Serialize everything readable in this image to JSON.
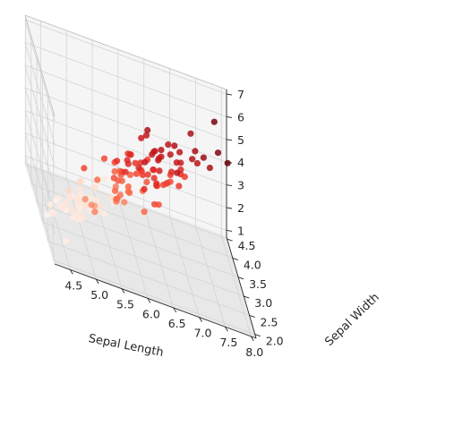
{
  "chart_data": {
    "type": "scatter",
    "projection": "3d",
    "title": "",
    "xlabel": "Sepal Length",
    "ylabel": "Sepal Width",
    "zlabel": "",
    "xlim": [
      4.2,
      8.1
    ],
    "ylim": [
      1.9,
      4.55
    ],
    "zlim": [
      0.7,
      7.2
    ],
    "xticks": [
      "4.5",
      "5.0",
      "5.5",
      "6.0",
      "6.5",
      "7.0",
      "7.5",
      "8.0"
    ],
    "yticks": [
      "2.0",
      "2.5",
      "3.0",
      "3.5",
      "4.0",
      "4.5"
    ],
    "zticks": [
      "1",
      "2",
      "3",
      "4",
      "5",
      "6",
      "7"
    ],
    "grid": true,
    "pane_color": "#f2f2f2",
    "colormap": "Reds",
    "color_by": "z",
    "points": [
      [
        4.3,
        3.0,
        1.1
      ],
      [
        4.4,
        2.9,
        1.4
      ],
      [
        4.4,
        3.0,
        1.3
      ],
      [
        4.4,
        3.2,
        1.3
      ],
      [
        4.5,
        2.3,
        1.3
      ],
      [
        4.6,
        3.1,
        1.5
      ],
      [
        4.6,
        3.4,
        1.4
      ],
      [
        4.6,
        3.6,
        1.0
      ],
      [
        4.6,
        3.2,
        1.4
      ],
      [
        4.7,
        3.2,
        1.3
      ],
      [
        4.7,
        3.2,
        1.6
      ],
      [
        4.8,
        3.4,
        1.6
      ],
      [
        4.8,
        3.0,
        1.4
      ],
      [
        4.8,
        3.4,
        1.9
      ],
      [
        4.8,
        3.1,
        1.6
      ],
      [
        4.8,
        3.0,
        1.4
      ],
      [
        4.9,
        3.0,
        1.4
      ],
      [
        4.9,
        3.1,
        1.5
      ],
      [
        4.9,
        3.6,
        1.4
      ],
      [
        4.9,
        2.4,
        3.3
      ],
      [
        4.9,
        2.5,
        4.5
      ],
      [
        5.0,
        3.6,
        1.4
      ],
      [
        5.0,
        3.4,
        1.5
      ],
      [
        5.0,
        3.0,
        1.6
      ],
      [
        5.0,
        3.4,
        1.6
      ],
      [
        5.0,
        3.2,
        1.2
      ],
      [
        5.0,
        3.5,
        1.3
      ],
      [
        5.0,
        3.5,
        1.6
      ],
      [
        5.0,
        3.3,
        1.4
      ],
      [
        5.0,
        2.0,
        3.5
      ],
      [
        5.0,
        2.3,
        3.3
      ],
      [
        5.1,
        3.5,
        1.4
      ],
      [
        5.1,
        3.7,
        1.5
      ],
      [
        5.1,
        3.3,
        1.7
      ],
      [
        5.1,
        3.4,
        1.5
      ],
      [
        5.1,
        3.8,
        1.9
      ],
      [
        5.1,
        3.8,
        1.6
      ],
      [
        5.1,
        2.5,
        3.0
      ],
      [
        5.2,
        3.5,
        1.5
      ],
      [
        5.2,
        3.4,
        1.4
      ],
      [
        5.2,
        4.1,
        1.5
      ],
      [
        5.2,
        2.7,
        3.9
      ],
      [
        5.3,
        3.7,
        1.5
      ],
      [
        5.4,
        3.9,
        1.7
      ],
      [
        5.4,
        3.7,
        1.5
      ],
      [
        5.4,
        3.4,
        1.7
      ],
      [
        5.4,
        3.4,
        1.5
      ],
      [
        5.4,
        3.0,
        4.5
      ],
      [
        5.5,
        4.2,
        1.4
      ],
      [
        5.5,
        3.5,
        1.3
      ],
      [
        5.5,
        2.3,
        4.0
      ],
      [
        5.5,
        2.4,
        3.8
      ],
      [
        5.5,
        2.4,
        3.7
      ],
      [
        5.5,
        2.5,
        4.0
      ],
      [
        5.5,
        2.6,
        4.4
      ],
      [
        5.6,
        2.9,
        3.6
      ],
      [
        5.6,
        3.0,
        4.5
      ],
      [
        5.6,
        2.5,
        3.9
      ],
      [
        5.6,
        3.0,
        4.1
      ],
      [
        5.6,
        2.7,
        4.2
      ],
      [
        5.6,
        2.8,
        4.9
      ],
      [
        5.7,
        4.4,
        1.5
      ],
      [
        5.7,
        3.8,
        1.7
      ],
      [
        5.7,
        2.8,
        4.5
      ],
      [
        5.7,
        2.6,
        3.5
      ],
      [
        5.7,
        3.0,
        4.2
      ],
      [
        5.7,
        2.9,
        4.2
      ],
      [
        5.7,
        2.8,
        4.1
      ],
      [
        5.7,
        2.5,
        5.0
      ],
      [
        5.8,
        4.0,
        1.2
      ],
      [
        5.8,
        2.7,
        4.1
      ],
      [
        5.8,
        2.7,
        3.9
      ],
      [
        5.8,
        2.6,
        4.0
      ],
      [
        5.8,
        2.7,
        5.1
      ],
      [
        5.8,
        2.8,
        5.1
      ],
      [
        5.9,
        3.0,
        4.2
      ],
      [
        5.9,
        3.2,
        4.8
      ],
      [
        5.9,
        3.0,
        5.1
      ],
      [
        6.0,
        2.2,
        4.0
      ],
      [
        6.0,
        2.9,
        4.5
      ],
      [
        6.0,
        2.7,
        5.1
      ],
      [
        6.0,
        3.4,
        4.5
      ],
      [
        6.0,
        2.2,
        5.0
      ],
      [
        6.0,
        3.0,
        4.8
      ],
      [
        6.1,
        2.9,
        4.7
      ],
      [
        6.1,
        2.8,
        4.0
      ],
      [
        6.1,
        2.8,
        4.7
      ],
      [
        6.1,
        3.0,
        4.6
      ],
      [
        6.1,
        3.0,
        4.9
      ],
      [
        6.1,
        2.6,
        5.6
      ],
      [
        6.2,
        2.2,
        4.5
      ],
      [
        6.2,
        2.9,
        4.3
      ],
      [
        6.2,
        2.8,
        4.8
      ],
      [
        6.2,
        3.4,
        5.4
      ],
      [
        6.3,
        3.3,
        4.7
      ],
      [
        6.3,
        2.5,
        4.9
      ],
      [
        6.3,
        2.3,
        4.4
      ],
      [
        6.3,
        3.3,
        6.0
      ],
      [
        6.3,
        2.9,
        5.6
      ],
      [
        6.3,
        2.5,
        5.0
      ],
      [
        6.3,
        2.7,
        4.9
      ],
      [
        6.3,
        2.8,
        5.1
      ],
      [
        6.3,
        3.4,
        5.6
      ],
      [
        6.4,
        3.2,
        4.5
      ],
      [
        6.4,
        2.9,
        4.3
      ],
      [
        6.4,
        2.7,
        5.3
      ],
      [
        6.4,
        3.2,
        5.3
      ],
      [
        6.4,
        2.8,
        5.6
      ],
      [
        6.4,
        3.1,
        5.5
      ],
      [
        6.5,
        2.8,
        4.6
      ],
      [
        6.5,
        3.0,
        5.8
      ],
      [
        6.5,
        3.2,
        5.1
      ],
      [
        6.5,
        3.0,
        5.5
      ],
      [
        6.6,
        2.9,
        4.6
      ],
      [
        6.6,
        3.0,
        4.4
      ],
      [
        6.7,
        3.1,
        4.4
      ],
      [
        6.7,
        3.0,
        5.0
      ],
      [
        6.7,
        3.1,
        4.7
      ],
      [
        6.7,
        2.5,
        5.8
      ],
      [
        6.7,
        3.3,
        5.7
      ],
      [
        6.7,
        3.1,
        5.6
      ],
      [
        6.8,
        2.8,
        4.8
      ],
      [
        6.8,
        3.0,
        5.5
      ],
      [
        6.8,
        3.2,
        5.9
      ],
      [
        6.9,
        3.1,
        4.9
      ],
      [
        6.9,
        3.2,
        5.7
      ],
      [
        6.9,
        3.1,
        5.4
      ],
      [
        6.9,
        3.1,
        5.1
      ],
      [
        7.0,
        3.2,
        4.7
      ],
      [
        7.1,
        3.0,
        5.9
      ],
      [
        7.2,
        3.6,
        6.1
      ],
      [
        7.2,
        3.2,
        6.0
      ],
      [
        7.2,
        3.0,
        5.8
      ],
      [
        7.3,
        2.9,
        6.3
      ],
      [
        7.4,
        2.8,
        6.1
      ],
      [
        7.6,
        3.0,
        6.6
      ],
      [
        7.7,
        3.8,
        6.7
      ],
      [
        7.7,
        2.6,
        6.9
      ]
    ]
  }
}
